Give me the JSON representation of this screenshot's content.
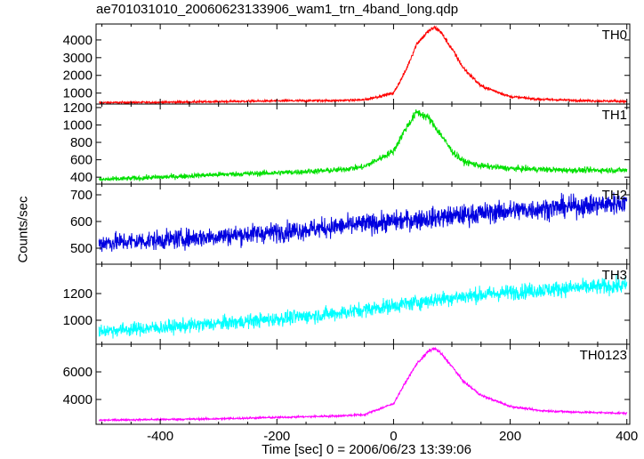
{
  "chart_data": {
    "type": "line",
    "title": "ae701031010_20060623133906_wam1_trn_4band_long.qdp",
    "xlabel": "Time [sec] 0 = 2006/06/23 13:39:06",
    "ylabel": "Counts/sec",
    "xlim": [
      -510,
      405
    ],
    "xticks": [
      -400,
      -200,
      0,
      200,
      400
    ],
    "grid": false,
    "panels": [
      {
        "name": "TH0",
        "color": "#ff0000",
        "ylim": [
          380,
          4900
        ],
        "yticks": [
          1000,
          2000,
          3000,
          4000
        ],
        "x": [
          -505,
          -400,
          -300,
          -200,
          -100,
          -50,
          0,
          20,
          40,
          60,
          70,
          80,
          100,
          120,
          150,
          200,
          250,
          300,
          350,
          400
        ],
        "values": [
          460,
          480,
          520,
          560,
          580,
          620,
          1000,
          2200,
          3800,
          4500,
          4700,
          4500,
          3500,
          2400,
          1400,
          800,
          650,
          600,
          560,
          530
        ],
        "noise": 60
      },
      {
        "name": "TH1",
        "color": "#00e000",
        "ylim": [
          320,
          1240
        ],
        "yticks": [
          400,
          600,
          800,
          1000,
          1200
        ],
        "x": [
          -505,
          -400,
          -300,
          -200,
          -100,
          -50,
          0,
          20,
          40,
          60,
          80,
          100,
          120,
          150,
          200,
          250,
          300,
          350,
          400
        ],
        "values": [
          370,
          400,
          430,
          450,
          480,
          520,
          700,
          950,
          1150,
          1080,
          900,
          700,
          580,
          530,
          500,
          490,
          480,
          480,
          480
        ],
        "noise": 30
      },
      {
        "name": "TH2",
        "color": "#0000e0",
        "ylim": [
          440,
          740
        ],
        "yticks": [
          500,
          600,
          700
        ],
        "x": [
          -505,
          -400,
          -300,
          -200,
          -100,
          0,
          100,
          200,
          300,
          400
        ],
        "values": [
          520,
          530,
          545,
          560,
          580,
          600,
          620,
          640,
          655,
          670
        ],
        "noise": 38
      },
      {
        "name": "TH3",
        "color": "#00ffff",
        "ylim": [
          820,
          1420
        ],
        "yticks": [
          1000,
          1200
        ],
        "x": [
          -505,
          -400,
          -300,
          -200,
          -100,
          0,
          100,
          200,
          300,
          400
        ],
        "values": [
          920,
          945,
          975,
          1010,
          1050,
          1110,
          1170,
          1210,
          1240,
          1260
        ],
        "noise": 55
      },
      {
        "name": "TH0123",
        "color": "#ff00ff",
        "ylim": [
          2200,
          8000
        ],
        "yticks": [
          4000,
          6000
        ],
        "x": [
          -505,
          -400,
          -300,
          -200,
          -100,
          -50,
          0,
          20,
          40,
          60,
          70,
          80,
          100,
          120,
          150,
          200,
          250,
          300,
          350,
          400
        ],
        "values": [
          2500,
          2550,
          2600,
          2700,
          2800,
          2900,
          3700,
          5200,
          6600,
          7500,
          7700,
          7400,
          6400,
          5300,
          4300,
          3500,
          3200,
          3100,
          3050,
          3000
        ],
        "noise": 70
      }
    ]
  }
}
